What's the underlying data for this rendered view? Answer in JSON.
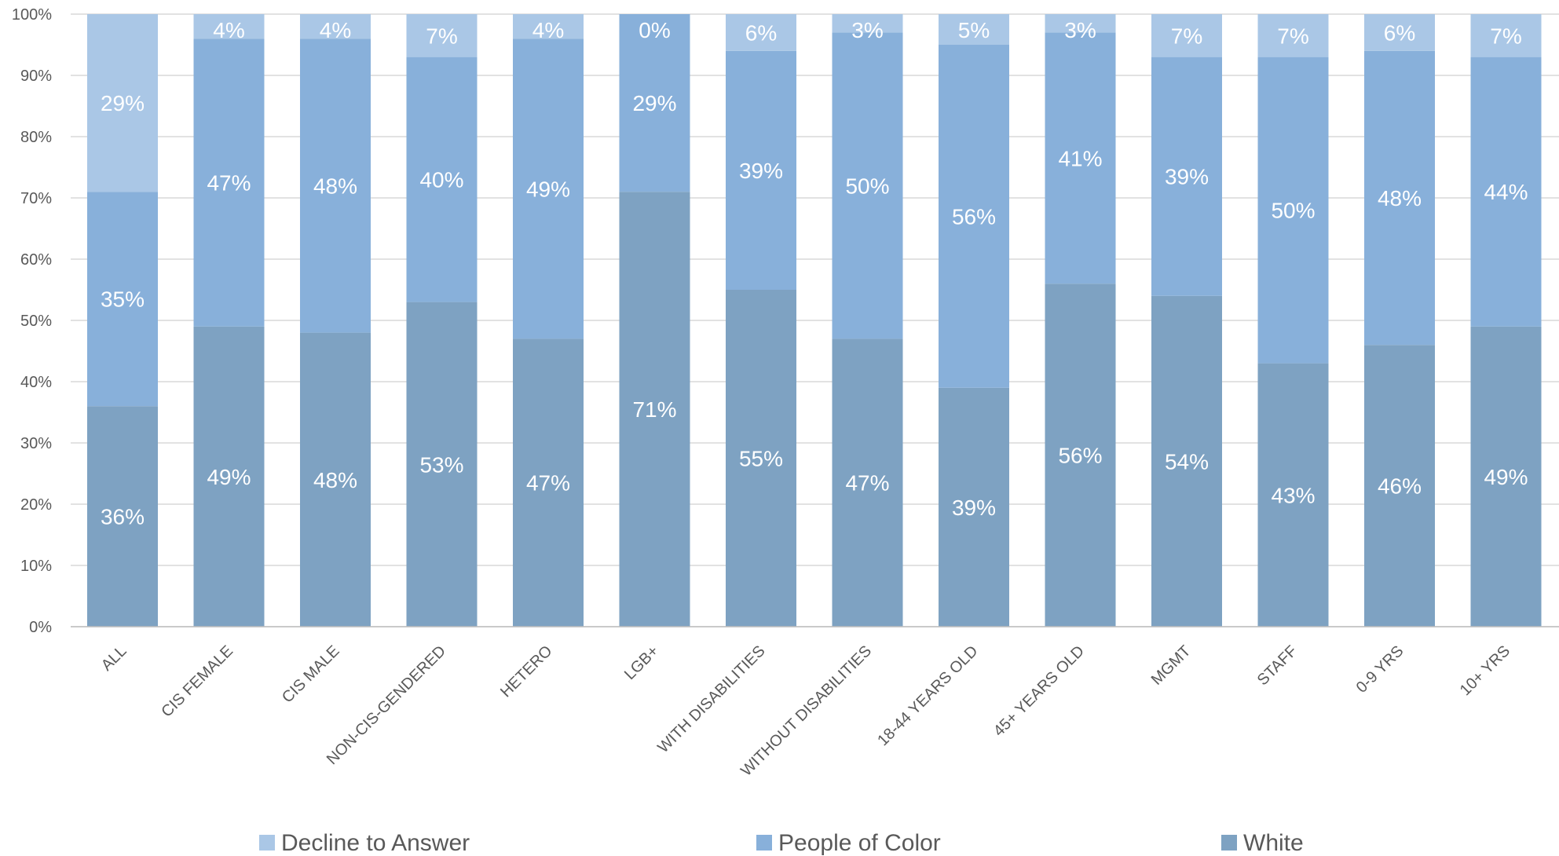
{
  "chart_data": {
    "type": "bar",
    "stacked": true,
    "percent": true,
    "categories": [
      "ALL",
      "CIS FEMALE",
      "CIS MALE",
      "NON-CIS-GENDERED",
      "HETERO",
      "LGB+",
      "WITH DISABILITIES",
      "WITHOUT DISABILITIES",
      "18-44 YEARS OLD",
      "45+ YEARS OLD",
      "MGMT",
      "STAFF",
      "0-9 YRS",
      "10+ YRS"
    ],
    "series": [
      {
        "name": "White",
        "color": "#7ea2c2",
        "values": [
          36,
          49,
          48,
          53,
          47,
          71,
          55,
          47,
          39,
          56,
          54,
          43,
          46,
          49
        ],
        "labels": [
          "36%",
          "49%",
          "48%",
          "53%",
          "47%",
          "71%",
          "55%",
          "47%",
          "39%",
          "56%",
          "54%",
          "43%",
          "46%",
          "49%"
        ]
      },
      {
        "name": "People of Color",
        "color": "#88b0da",
        "values": [
          35,
          47,
          48,
          40,
          49,
          29,
          39,
          50,
          56,
          41,
          39,
          50,
          48,
          44
        ],
        "labels": [
          "35%",
          "47%",
          "48%",
          "40%",
          "49%",
          "29%",
          "39%",
          "50%",
          "56%",
          "41%",
          "39%",
          "50%",
          "48%",
          "44%"
        ]
      },
      {
        "name": "Decline to Answer",
        "color": "#aac7e6",
        "values": [
          29,
          4,
          4,
          7,
          4,
          0,
          6,
          3,
          5,
          3,
          7,
          7,
          6,
          7
        ],
        "labels": [
          "29%",
          "4%",
          "4%",
          "7%",
          "4%",
          "0%",
          "6%",
          "3%",
          "5%",
          "3%",
          "7%",
          "7%",
          "6%",
          "7%"
        ]
      }
    ],
    "ylim": [
      0,
      100
    ],
    "yticks": [
      "0%",
      "10%",
      "20%",
      "30%",
      "40%",
      "50%",
      "60%",
      "70%",
      "80%",
      "90%",
      "100%"
    ],
    "grid": true,
    "legend": {
      "position": "bottom",
      "entries": [
        {
          "name": "Decline to Answer",
          "color": "#aac7e6"
        },
        {
          "name": "People of Color",
          "color": "#88b0da"
        },
        {
          "name": "White",
          "color": "#7ea2c2"
        }
      ]
    }
  }
}
